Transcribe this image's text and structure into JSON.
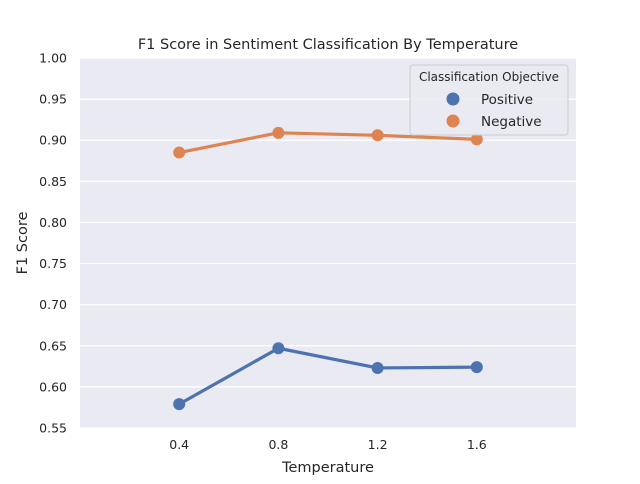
{
  "chart_data": {
    "type": "line",
    "title": "F1 Score in Sentiment Classification By Temperature",
    "xlabel": "Temperature",
    "ylabel": "F1 Score",
    "categories": [
      "0.4",
      "0.8",
      "1.2",
      "1.6"
    ],
    "ylim": [
      0.55,
      1.0
    ],
    "yticks": [
      "0.55",
      "0.60",
      "0.65",
      "0.70",
      "0.75",
      "0.80",
      "0.85",
      "0.90",
      "0.95",
      "1.00"
    ],
    "grid": true,
    "legend": {
      "title": "Classification Objective",
      "placement": "top-right"
    },
    "series": [
      {
        "name": "Positive",
        "color": "#4c72b0",
        "values": [
          0.579,
          0.647,
          0.623,
          0.624
        ]
      },
      {
        "name": "Negative",
        "color": "#dd8452",
        "values": [
          0.885,
          0.909,
          0.906,
          0.901
        ]
      }
    ]
  }
}
